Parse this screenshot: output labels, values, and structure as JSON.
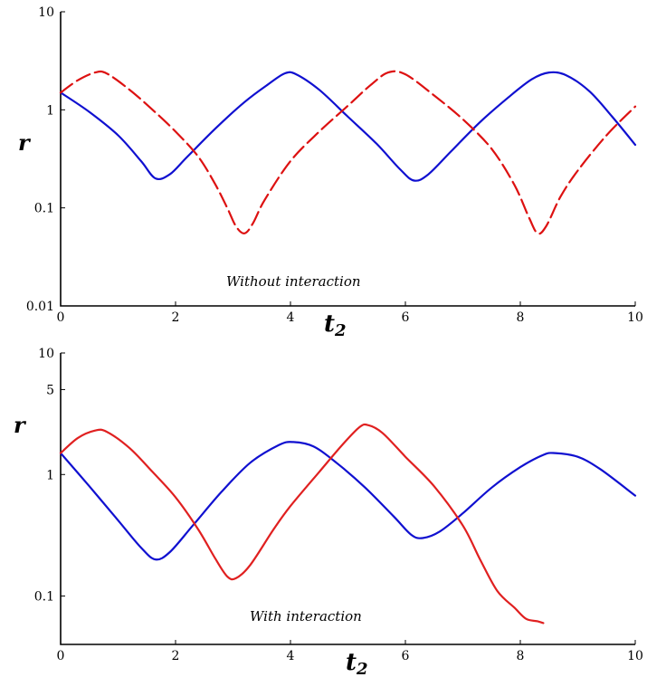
{
  "chart_data": [
    {
      "type": "line",
      "yscale": "log",
      "xlabel": "t",
      "xlabel_sub": "2",
      "ylabel": "r",
      "xlim": [
        0,
        10
      ],
      "ylim": [
        0.01,
        10
      ],
      "xticks": [
        0,
        2,
        4,
        6,
        8,
        10
      ],
      "xtick_labels": [
        "0",
        "2",
        "4",
        "6",
        "8",
        "10"
      ],
      "yticks": [
        10,
        1,
        0.1,
        0.01
      ],
      "ytick_labels": [
        "10",
        "1",
        "0.1",
        "0.01"
      ],
      "annotation": "Without interaction",
      "series": [
        {
          "color": "#1010d0",
          "dash": "solid",
          "points": [
            [
              0,
              1.5
            ],
            [
              0.5,
              0.95
            ],
            [
              1,
              0.55
            ],
            [
              1.4,
              0.3
            ],
            [
              1.65,
              0.2
            ],
            [
              1.9,
              0.22
            ],
            [
              2.2,
              0.33
            ],
            [
              2.7,
              0.65
            ],
            [
              3.2,
              1.2
            ],
            [
              3.6,
              1.8
            ],
            [
              3.9,
              2.35
            ],
            [
              4.1,
              2.3
            ],
            [
              4.5,
              1.6
            ],
            [
              5,
              0.85
            ],
            [
              5.5,
              0.45
            ],
            [
              5.9,
              0.25
            ],
            [
              6.15,
              0.19
            ],
            [
              6.4,
              0.22
            ],
            [
              6.8,
              0.38
            ],
            [
              7.3,
              0.75
            ],
            [
              7.8,
              1.35
            ],
            [
              8.2,
              2.05
            ],
            [
              8.5,
              2.4
            ],
            [
              8.8,
              2.25
            ],
            [
              9.2,
              1.55
            ],
            [
              9.6,
              0.85
            ],
            [
              10,
              0.44
            ]
          ]
        },
        {
          "color": "#dd1111",
          "dash": "dashed",
          "points": [
            [
              0,
              1.5
            ],
            [
              0.3,
              2.0
            ],
            [
              0.6,
              2.4
            ],
            [
              0.8,
              2.35
            ],
            [
              1.2,
              1.6
            ],
            [
              1.6,
              1.0
            ],
            [
              2,
              0.6
            ],
            [
              2.4,
              0.33
            ],
            [
              2.7,
              0.17
            ],
            [
              2.9,
              0.1
            ],
            [
              3.05,
              0.065
            ],
            [
              3.2,
              0.055
            ],
            [
              3.35,
              0.07
            ],
            [
              3.55,
              0.12
            ],
            [
              4,
              0.3
            ],
            [
              4.5,
              0.6
            ],
            [
              5,
              1.1
            ],
            [
              5.4,
              1.8
            ],
            [
              5.7,
              2.4
            ],
            [
              6,
              2.3
            ],
            [
              6.5,
              1.4
            ],
            [
              7,
              0.8
            ],
            [
              7.5,
              0.4
            ],
            [
              7.9,
              0.17
            ],
            [
              8.15,
              0.08
            ],
            [
              8.3,
              0.055
            ],
            [
              8.45,
              0.065
            ],
            [
              8.7,
              0.13
            ],
            [
              9,
              0.24
            ],
            [
              9.5,
              0.55
            ],
            [
              10,
              1.08
            ]
          ]
        }
      ]
    },
    {
      "type": "line",
      "yscale": "log",
      "xlabel": "t",
      "xlabel_sub": "2",
      "ylabel": "r",
      "xlim": [
        0,
        10
      ],
      "ylim": [
        0.04,
        10
      ],
      "xticks": [
        0,
        2,
        4,
        6,
        8,
        10
      ],
      "xtick_labels": [
        "0",
        "2",
        "4",
        "6",
        "8",
        "10"
      ],
      "yticks": [
        10,
        5,
        1,
        0.1
      ],
      "ytick_labels": [
        "10",
        "5",
        "1",
        "0.1"
      ],
      "annotation": "With interaction",
      "series": [
        {
          "color": "#1010d0",
          "dash": "solid",
          "points": [
            [
              0,
              1.5
            ],
            [
              0.5,
              0.8
            ],
            [
              1,
              0.42
            ],
            [
              1.4,
              0.25
            ],
            [
              1.65,
              0.2
            ],
            [
              1.9,
              0.23
            ],
            [
              2.3,
              0.38
            ],
            [
              2.8,
              0.72
            ],
            [
              3.3,
              1.25
            ],
            [
              3.8,
              1.75
            ],
            [
              4.05,
              1.85
            ],
            [
              4.4,
              1.7
            ],
            [
              4.8,
              1.25
            ],
            [
              5.3,
              0.78
            ],
            [
              5.8,
              0.45
            ],
            [
              6.1,
              0.32
            ],
            [
              6.3,
              0.3
            ],
            [
              6.6,
              0.34
            ],
            [
              7,
              0.48
            ],
            [
              7.5,
              0.78
            ],
            [
              8,
              1.15
            ],
            [
              8.4,
              1.45
            ],
            [
              8.6,
              1.5
            ],
            [
              9,
              1.4
            ],
            [
              9.4,
              1.1
            ],
            [
              10,
              0.67
            ]
          ]
        },
        {
          "color": "#e02020",
          "dash": "solid",
          "points": [
            [
              0,
              1.5
            ],
            [
              0.3,
              2.0
            ],
            [
              0.6,
              2.3
            ],
            [
              0.8,
              2.25
            ],
            [
              1.2,
              1.65
            ],
            [
              1.6,
              1.05
            ],
            [
              2,
              0.65
            ],
            [
              2.4,
              0.35
            ],
            [
              2.7,
              0.2
            ],
            [
              2.9,
              0.145
            ],
            [
              3.05,
              0.14
            ],
            [
              3.3,
              0.18
            ],
            [
              3.7,
              0.35
            ],
            [
              4,
              0.55
            ],
            [
              4.5,
              1.05
            ],
            [
              4.9,
              1.75
            ],
            [
              5.2,
              2.45
            ],
            [
              5.35,
              2.55
            ],
            [
              5.6,
              2.2
            ],
            [
              6,
              1.4
            ],
            [
              6.5,
              0.8
            ],
            [
              7,
              0.38
            ],
            [
              7.3,
              0.2
            ],
            [
              7.6,
              0.11
            ],
            [
              7.9,
              0.08
            ],
            [
              8.1,
              0.065
            ],
            [
              8.3,
              0.062
            ],
            [
              8.4,
              0.06
            ]
          ]
        }
      ]
    }
  ]
}
